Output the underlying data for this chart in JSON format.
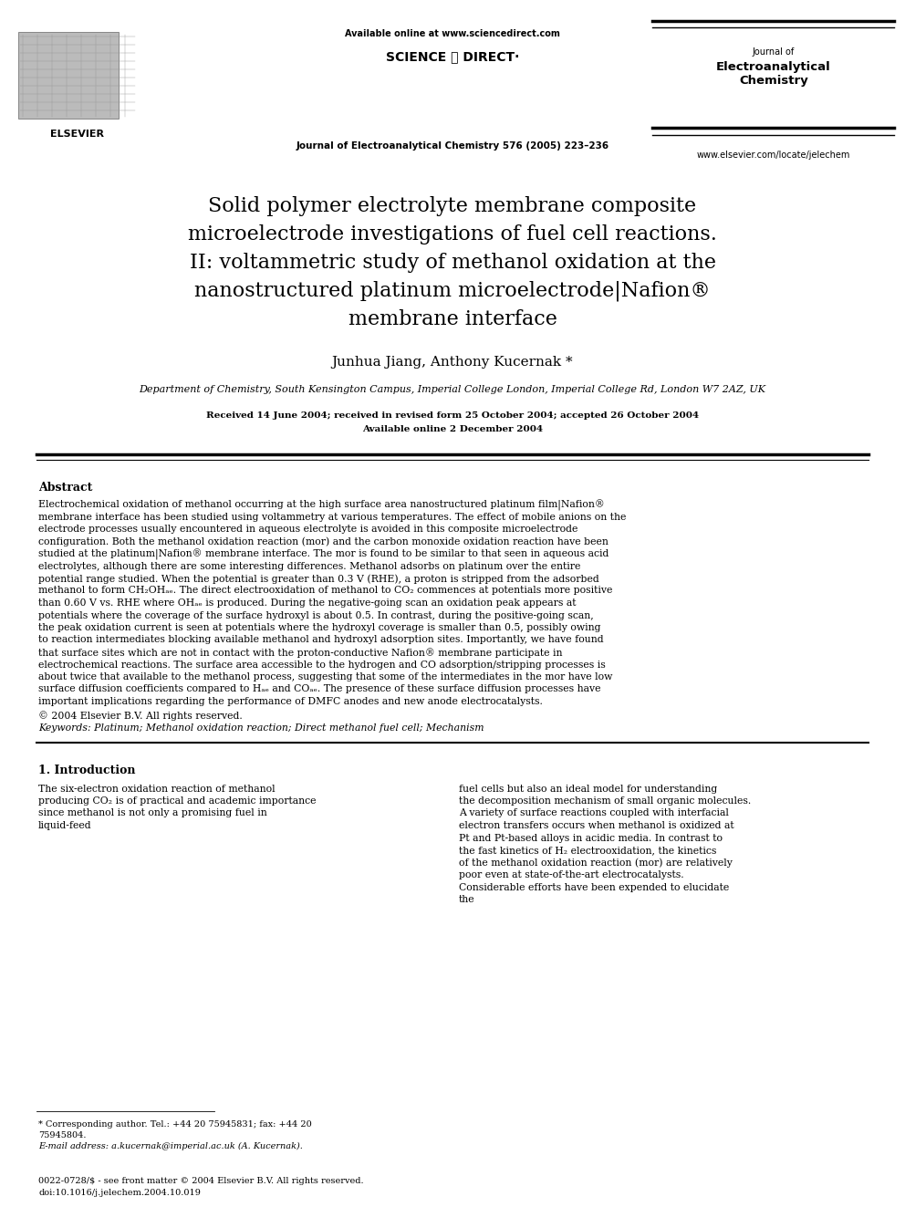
{
  "bg_color": "#ffffff",
  "available_online": "Available online at www.sciencedirect.com",
  "sciencedirect_logo": "SCIENCE ⓓ DIRECT·",
  "journal_name_center": "Journal of Electroanalytical Chemistry 576 (2005) 223–236",
  "journal_right_line1": "Journal of",
  "journal_right_line2": "Electroanalytical",
  "journal_right_line3": "Chemistry",
  "website": "www.elsevier.com/locate/jelechem",
  "elsevier_label": "ELSEVIER",
  "title_lines": [
    "Solid polymer electrolyte membrane composite",
    "microelectrode investigations of fuel cell reactions.",
    "II: voltammetric study of methanol oxidation at the",
    "nanostructured platinum microelectrode|Nafion®",
    "membrane interface"
  ],
  "authors": "Junhua Jiang, Anthony Kucernak *",
  "affiliation": "Department of Chemistry, South Kensington Campus, Imperial College London, Imperial College Rd, London W7 2AZ, UK",
  "received1": "Received 14 June 2004; received in revised form 25 October 2004; accepted 26 October 2004",
  "received2": "Available online 2 December 2004",
  "abstract_heading": "Abstract",
  "abstract_indent": "    Electrochemical oxidation of methanol occurring at the high surface area nanostructured platinum film|Nafion® membrane interface has been studied using voltammetry at various temperatures. The effect of mobile anions on the electrode processes usually encountered in aqueous electrolyte is avoided in this composite microelectrode configuration. Both the methanol oxidation reaction (mor) and the carbon monoxide oxidation reaction have been studied at the platinum|Nafion® membrane interface. The mor is found to be similar to that seen in aqueous acid electrolytes, although there are some interesting differences. Methanol adsorbs on platinum over the entire potential range studied. When the potential is greater than 0.3 V (RHE), a proton is stripped from the adsorbed methanol to form CH₂OHₐₑ. The direct electrooxidation of methanol to CO₂ commences at potentials more positive than 0.60 V vs. RHE where OHₐₑ is produced. During the negative-going scan an oxidation peak appears at potentials where the coverage of the surface hydroxyl is about 0.5. In contrast, during the positive-going scan, the peak oxidation current is seen at potentials where the hydroxyl coverage is smaller than 0.5, possibly owing to reaction intermediates blocking available methanol and hydroxyl adsorption sites. Importantly, we have found that surface sites which are not in contact with the proton-conductive Nafion® membrane participate in electrochemical reactions. The surface area accessible to the hydrogen and CO adsorption/stripping processes is about twice that available to the methanol process, suggesting that some of the intermediates in the mor have low surface diffusion coefficients compared to Hₐₑ and COₐₑ. The presence of these surface diffusion processes have important implications regarding the performance of DMFC anodes and new anode electrocatalysts.",
  "copyright": "© 2004 Elsevier B.V. All rights reserved.",
  "keywords": "Keywords: Platinum; Methanol oxidation reaction; Direct methanol fuel cell; Mechanism",
  "sec1_heading": "1. Introduction",
  "sec1_para1_col1": "The six-electron oxidation reaction of methanol producing CO₂ is of practical and academic importance since methanol is not only a promising fuel in liquid-feed",
  "sec1_para1_col2": "fuel cells but also an ideal model for understanding the decomposition mechanism of small organic molecules. A variety of surface reactions coupled with interfacial electron transfers occurs when methanol is oxidized at Pt and Pt-based alloys in acidic media. In contrast to the fast kinetics of H₂ electrooxidation, the kinetics of the methanol oxidation reaction (mor) are relatively poor even at state-of-the-art electrocatalysts. Considerable efforts have been expended to elucidate the",
  "footnote1": "* Corresponding author. Tel.: +44 20 75945831; fax: +44 20",
  "footnote2": "75945804.",
  "footnote_email": "E-mail address: a.kucernak@imperial.ac.uk (A. Kucernak).",
  "footer1": "0022-0728/$ - see front matter © 2004 Elsevier B.V. All rights reserved.",
  "footer2": "doi:10.1016/j.jelechem.2004.10.019"
}
